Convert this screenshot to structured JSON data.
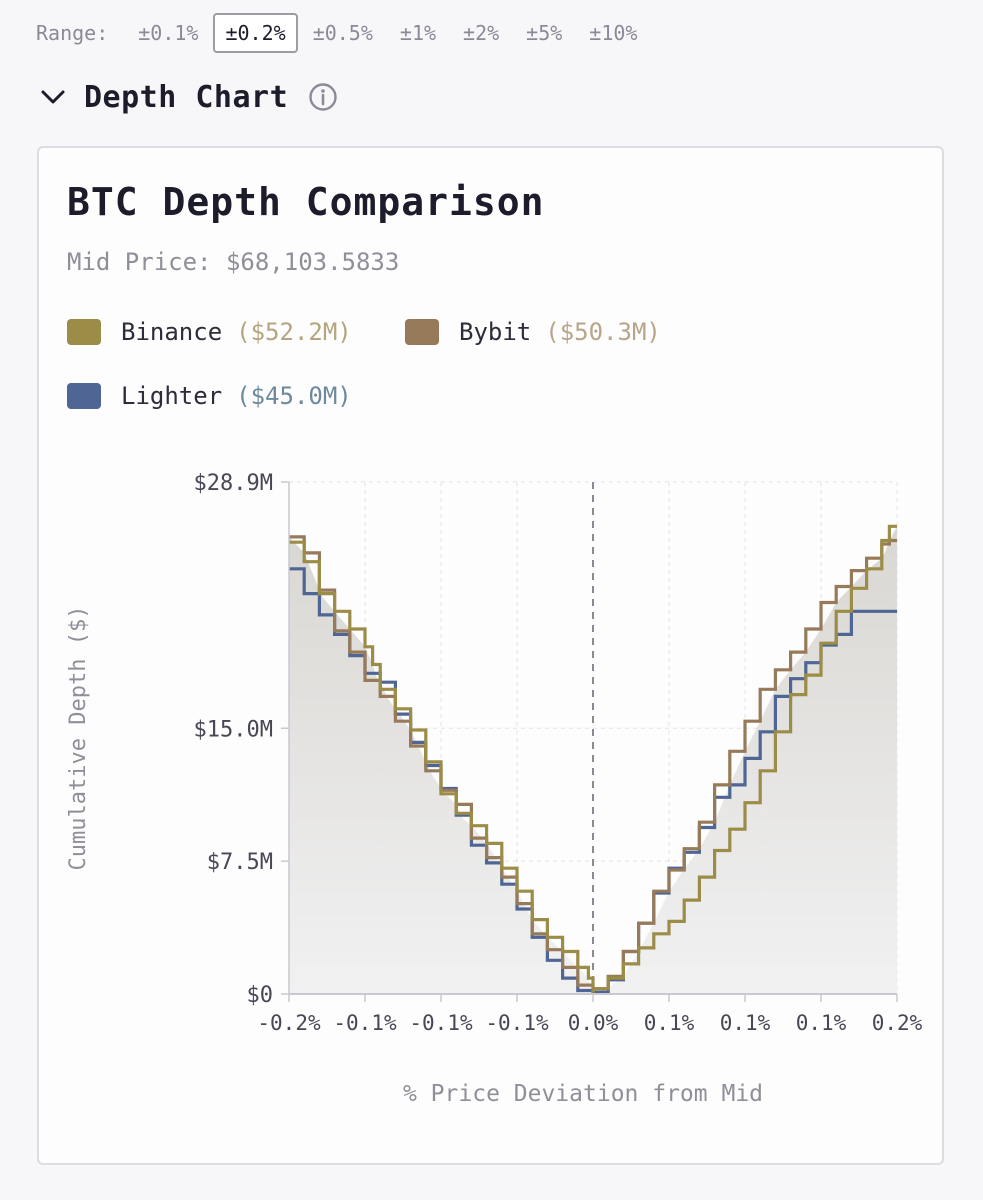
{
  "range": {
    "label": "Range:",
    "options": [
      "±0.1%",
      "±0.2%",
      "±0.5%",
      "±1%",
      "±2%",
      "±5%",
      "±10%"
    ],
    "selected": "±0.2%"
  },
  "section": {
    "title": "Depth Chart",
    "chevron_icon": "chevron-down-icon",
    "info_icon": "info-icon"
  },
  "colors": {
    "binance": "#9b8c48",
    "bybit": "#967a5a",
    "lighter": "#4f6694",
    "binance_total": "#b4a57e",
    "bybit_total": "#b8a488",
    "lighter_total": "#6c8a9c",
    "axis_text": "#474755",
    "axis_label": "#8f8f99"
  },
  "chart_data": {
    "type": "line",
    "title": "BTC Depth Comparison",
    "subtitle": "Mid Price: $68,103.5833",
    "legend": [
      {
        "name": "Binance",
        "total": "($52.2M)"
      },
      {
        "name": "Bybit",
        "total": "($50.3M)"
      },
      {
        "name": "Lighter",
        "total": "($45.0M)"
      }
    ],
    "xlabel": "% Price Deviation from Mid",
    "ylabel": "Cumulative Depth ($)",
    "xlim": [
      -0.2,
      0.2
    ],
    "ylim": [
      0,
      28.9
    ],
    "y_ticks": [
      {
        "value": 0,
        "label": "$0"
      },
      {
        "value": 7.5,
        "label": "$7.5M"
      },
      {
        "value": 15.0,
        "label": "$15.0M"
      },
      {
        "value": 28.9,
        "label": "$28.9M"
      }
    ],
    "x_ticks": [
      {
        "value": -0.2,
        "label": "-0.2%"
      },
      {
        "value": -0.15,
        "label": "-0.1%"
      },
      {
        "value": -0.1,
        "label": "-0.1%"
      },
      {
        "value": -0.05,
        "label": "-0.1%"
      },
      {
        "value": 0,
        "label": "0.0%"
      },
      {
        "value": 0.05,
        "label": "0.1%"
      },
      {
        "value": 0.1,
        "label": "0.1%"
      },
      {
        "value": 0.15,
        "label": "0.1%"
      },
      {
        "value": 0.2,
        "label": "0.2%"
      }
    ],
    "series": [
      {
        "name": "Binance",
        "points": [
          [
            -0.2,
            25.5
          ],
          [
            -0.19,
            24.4
          ],
          [
            -0.18,
            22.6
          ],
          [
            -0.17,
            21.6
          ],
          [
            -0.16,
            20.6
          ],
          [
            -0.15,
            19.6
          ],
          [
            -0.145,
            18.6
          ],
          [
            -0.14,
            17.2
          ],
          [
            -0.13,
            16.1
          ],
          [
            -0.12,
            14.9
          ],
          [
            -0.11,
            13.1
          ],
          [
            -0.1,
            11.3
          ],
          [
            -0.09,
            10.2
          ],
          [
            -0.08,
            9.5
          ],
          [
            -0.07,
            8.5
          ],
          [
            -0.06,
            7.1
          ],
          [
            -0.05,
            5.8
          ],
          [
            -0.04,
            4.2
          ],
          [
            -0.03,
            3.2
          ],
          [
            -0.02,
            2.4
          ],
          [
            -0.01,
            1.5
          ],
          [
            -0.003,
            0.9
          ],
          [
            0,
            0.1
          ],
          [
            0.01,
            0.3
          ],
          [
            0.02,
            0.9
          ],
          [
            0.03,
            1.7
          ],
          [
            0.04,
            2.6
          ],
          [
            0.05,
            3.4
          ],
          [
            0.06,
            4.1
          ],
          [
            0.07,
            5.3
          ],
          [
            0.08,
            6.6
          ],
          [
            0.09,
            8.1
          ],
          [
            0.1,
            9.3
          ],
          [
            0.11,
            10.8
          ],
          [
            0.12,
            12.6
          ],
          [
            0.13,
            14.8
          ],
          [
            0.14,
            16.9
          ],
          [
            0.15,
            18.0
          ],
          [
            0.16,
            19.8
          ],
          [
            0.17,
            21.6
          ],
          [
            0.18,
            22.9
          ],
          [
            0.19,
            24.0
          ],
          [
            0.195,
            25.6
          ],
          [
            0.2,
            26.4
          ]
        ]
      },
      {
        "name": "Bybit",
        "points": [
          [
            -0.2,
            25.8
          ],
          [
            -0.19,
            24.9
          ],
          [
            -0.18,
            22.8
          ],
          [
            -0.17,
            20.5
          ],
          [
            -0.16,
            19.3
          ],
          [
            -0.15,
            17.7
          ],
          [
            -0.14,
            16.8
          ],
          [
            -0.13,
            15.4
          ],
          [
            -0.12,
            14.0
          ],
          [
            -0.11,
            12.6
          ],
          [
            -0.1,
            11.5
          ],
          [
            -0.09,
            10.7
          ],
          [
            -0.08,
            8.8
          ],
          [
            -0.07,
            7.7
          ],
          [
            -0.06,
            6.6
          ],
          [
            -0.05,
            5.1
          ],
          [
            -0.04,
            3.4
          ],
          [
            -0.03,
            2.5
          ],
          [
            -0.02,
            1.5
          ],
          [
            -0.01,
            0.5
          ],
          [
            0,
            0.0
          ],
          [
            0.01,
            0.3
          ],
          [
            0.02,
            1.0
          ],
          [
            0.03,
            2.4
          ],
          [
            0.04,
            4.0
          ],
          [
            0.05,
            5.8
          ],
          [
            0.06,
            7.0
          ],
          [
            0.07,
            8.2
          ],
          [
            0.08,
            9.7
          ],
          [
            0.09,
            11.8
          ],
          [
            0.1,
            13.7
          ],
          [
            0.11,
            15.4
          ],
          [
            0.12,
            17.2
          ],
          [
            0.13,
            18.3
          ],
          [
            0.14,
            19.3
          ],
          [
            0.15,
            20.6
          ],
          [
            0.16,
            22.1
          ],
          [
            0.17,
            23.0
          ],
          [
            0.18,
            23.9
          ],
          [
            0.19,
            24.6
          ],
          [
            0.195,
            25.4
          ],
          [
            0.2,
            25.6
          ]
        ]
      },
      {
        "name": "Lighter",
        "points": [
          [
            -0.2,
            24.0
          ],
          [
            -0.19,
            22.6
          ],
          [
            -0.18,
            21.4
          ],
          [
            -0.17,
            20.3
          ],
          [
            -0.16,
            19.1
          ],
          [
            -0.15,
            18.1
          ],
          [
            -0.14,
            17.6
          ],
          [
            -0.13,
            15.8
          ],
          [
            -0.12,
            14.2
          ],
          [
            -0.11,
            12.9
          ],
          [
            -0.1,
            11.6
          ],
          [
            -0.09,
            10.1
          ],
          [
            -0.08,
            8.4
          ],
          [
            -0.07,
            7.4
          ],
          [
            -0.06,
            6.2
          ],
          [
            -0.05,
            4.8
          ],
          [
            -0.04,
            3.2
          ],
          [
            -0.03,
            1.9
          ],
          [
            -0.02,
            0.9
          ],
          [
            -0.01,
            0.2
          ],
          [
            0,
            0.0
          ],
          [
            0.01,
            0.1
          ],
          [
            0.02,
            0.8
          ],
          [
            0.03,
            2.4
          ],
          [
            0.04,
            4.0
          ],
          [
            0.05,
            5.7
          ],
          [
            0.06,
            7.1
          ],
          [
            0.07,
            8.0
          ],
          [
            0.08,
            9.4
          ],
          [
            0.09,
            11.1
          ],
          [
            0.1,
            11.8
          ],
          [
            0.11,
            13.3
          ],
          [
            0.12,
            14.8
          ],
          [
            0.13,
            16.8
          ],
          [
            0.14,
            17.8
          ],
          [
            0.15,
            18.7
          ],
          [
            0.16,
            19.7
          ],
          [
            0.17,
            20.3
          ],
          [
            0.18,
            21.6
          ],
          [
            0.19,
            21.6
          ],
          [
            0.2,
            21.6
          ]
        ]
      }
    ]
  }
}
